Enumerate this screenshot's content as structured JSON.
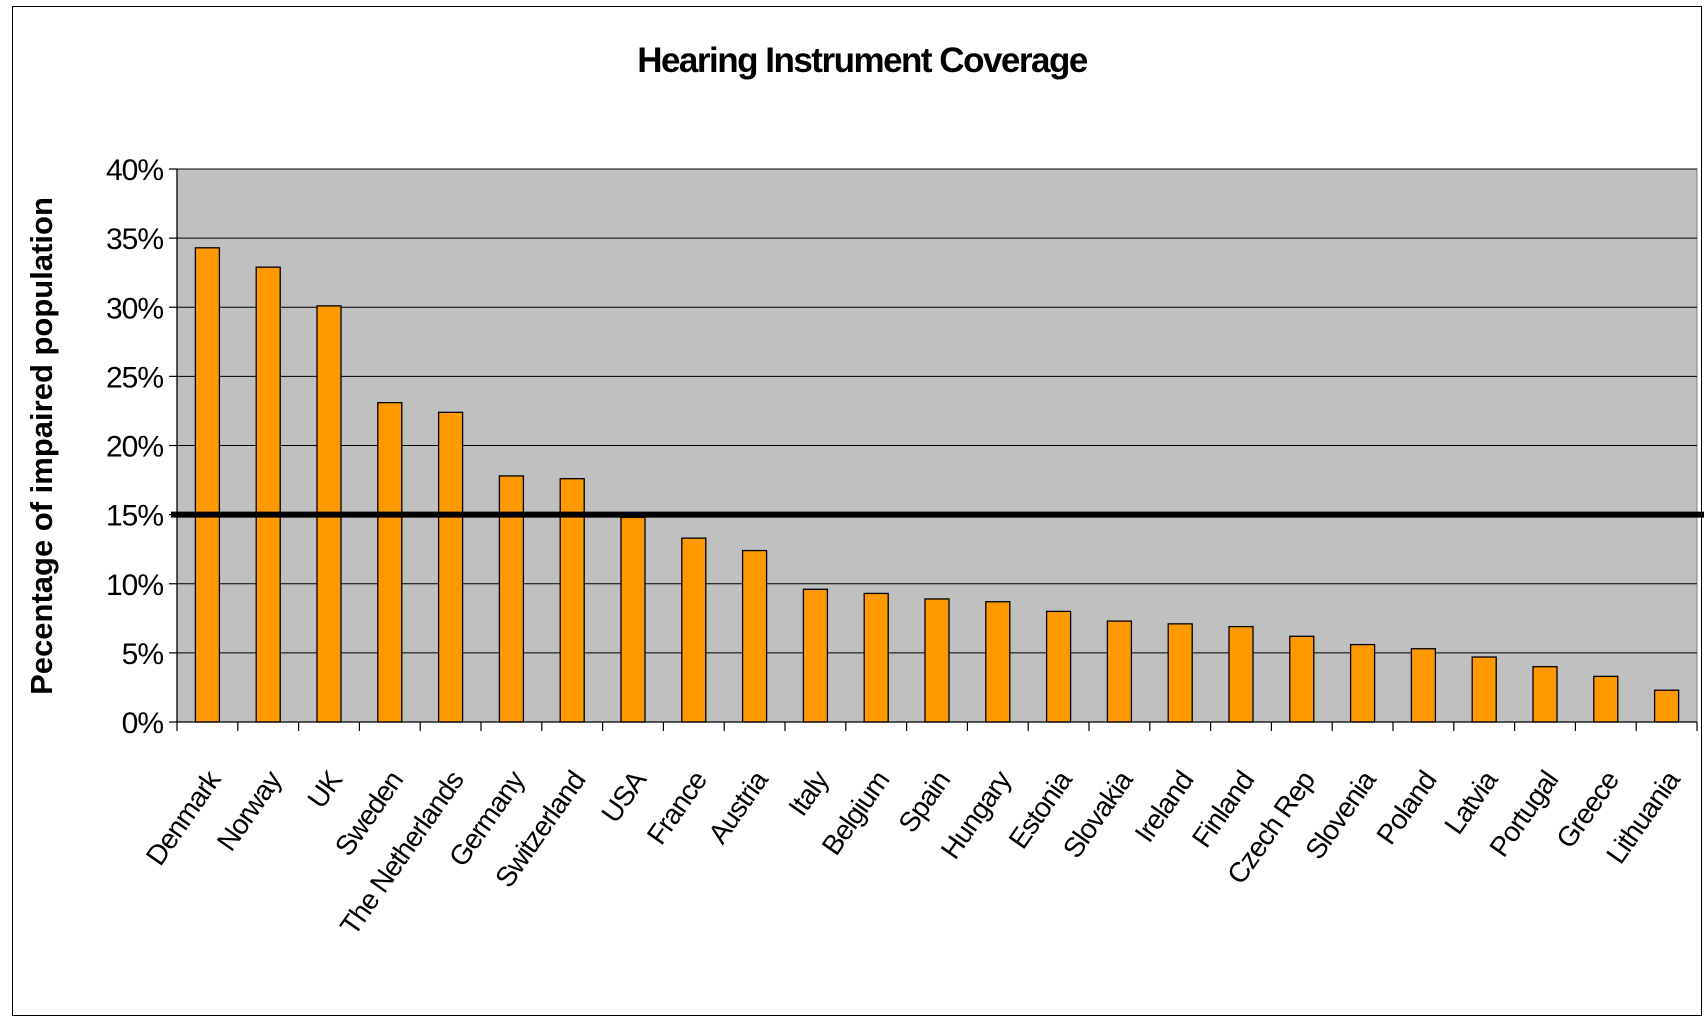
{
  "chart_data": {
    "type": "bar",
    "title": "Hearing Instrument Coverage",
    "xlabel": "",
    "ylabel": "Pecentage of impaired population",
    "ylim": [
      0,
      40
    ],
    "yticks": [
      "0%",
      "5%",
      "10%",
      "15%",
      "20%",
      "25%",
      "30%",
      "35%",
      "40%"
    ],
    "reference_line": 15,
    "grid": true,
    "legend": "none",
    "categories": [
      "Denmark",
      "Norway",
      "UK",
      "Sweden",
      "The Netherlands",
      "Germany",
      "Switzerland",
      "USA",
      "France",
      "Austria",
      "Italy",
      "Belgium",
      "Spain",
      "Hungary",
      "Estonia",
      "Slovakia",
      "Ireland",
      "Finland",
      "Czech Rep",
      "Slovenia",
      "Poland",
      "Latvia",
      "Portugal",
      "Greece",
      "Lithuania"
    ],
    "values": [
      34.3,
      32.9,
      30.1,
      23.1,
      22.4,
      17.8,
      17.6,
      14.8,
      13.3,
      12.4,
      9.6,
      9.3,
      8.9,
      8.7,
      8.0,
      7.3,
      7.1,
      6.9,
      6.2,
      5.6,
      5.3,
      4.7,
      4.0,
      3.3,
      2.3
    ],
    "colors": {
      "bar": "#ff9900",
      "plot_bg": "#c0c0c0",
      "reference_line": "#000000"
    }
  }
}
